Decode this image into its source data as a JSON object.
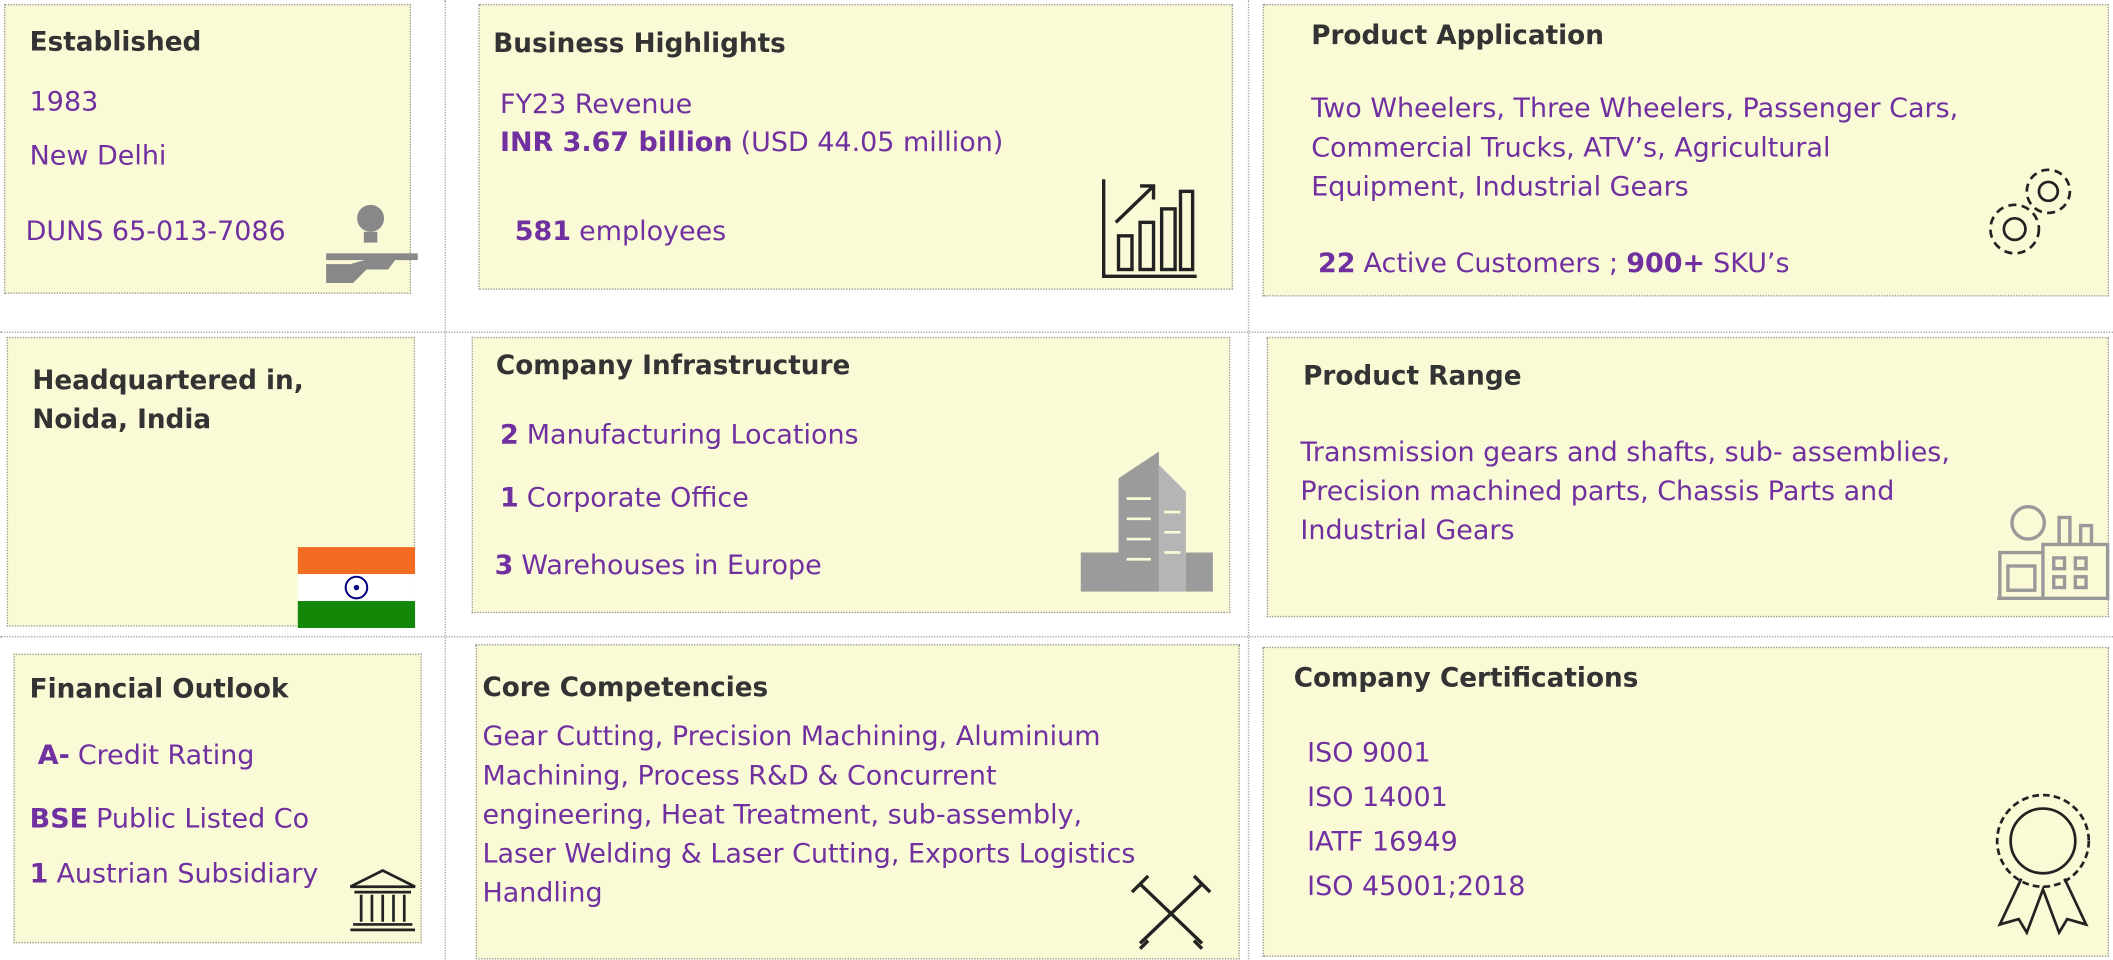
{
  "cards": [
    {
      "title": [
        "Established"
      ],
      "lines": [
        [
          {
            "text": "1983"
          }
        ],
        [
          {
            "text": "New Delhi"
          }
        ],
        [
          {
            "text": "DUNS 65-013-7086"
          }
        ]
      ]
    },
    {
      "title": [
        "Business Highlights"
      ],
      "lines": [
        [
          {
            "text": "FY23 Revenue"
          }
        ],
        [
          {
            "strong": "INR 3.67 billion"
          },
          {
            "text": "(USD 44.05 million)"
          }
        ],
        [
          {
            "strong": "581"
          },
          {
            "text": "employees"
          }
        ]
      ]
    },
    {
      "title": [
        "Product Application"
      ],
      "lines": [
        [
          {
            "text": "Two Wheelers, Three Wheelers, Passenger Cars,"
          }
        ],
        [
          {
            "text": "Commercial Trucks, ATV’s, Agricultural"
          }
        ],
        [
          {
            "text": "Equipment, Industrial Gears"
          }
        ],
        [
          {
            "strong": "22"
          },
          {
            "text": "Active Customers ;"
          },
          {
            "strong": "900+"
          },
          {
            "text": "SKU’s"
          }
        ]
      ]
    },
    {
      "title": [
        "Headquartered in,",
        "Noida, India"
      ],
      "lines": []
    },
    {
      "title": [
        "Company Infrastructure"
      ],
      "lines": [
        [
          {
            "strong": "2"
          },
          {
            "text": "Manufacturing Locations"
          }
        ],
        [
          {
            "strong": "1"
          },
          {
            "text": "Corporate Office"
          }
        ],
        [
          {
            "strong": "3"
          },
          {
            "text": "Warehouses in Europe"
          }
        ]
      ]
    },
    {
      "title": [
        "Product Range"
      ],
      "lines": [
        [
          {
            "text": "Transmission gears and shafts, sub- assemblies,"
          }
        ],
        [
          {
            "text": "Precision machined parts, Chassis Parts and"
          }
        ],
        [
          {
            "text": "Industrial Gears"
          }
        ]
      ]
    },
    {
      "title": [
        "Financial Outlook"
      ],
      "lines": [
        [
          {
            "strong": "A-"
          },
          {
            "text": "Credit Rating"
          }
        ],
        [
          {
            "strong": "BSE"
          },
          {
            "text": "Public Listed Co"
          }
        ],
        [
          {
            "strong": "1"
          },
          {
            "text": "Austrian Subsidiary"
          }
        ]
      ]
    },
    {
      "title": [
        "Core Competencies"
      ],
      "lines": [
        [
          {
            "text": "Gear Cutting, Precision Machining, Aluminium"
          }
        ],
        [
          {
            "text": "Machining, Process R&D & Concurrent"
          }
        ],
        [
          {
            "text": "engineering, Heat Treatment, sub-assembly,"
          }
        ],
        [
          {
            "text": "Laser Welding & Laser Cutting, Exports Logistics"
          }
        ],
        [
          {
            "text": "Handling"
          }
        ]
      ]
    },
    {
      "title": [
        "Company Certifications"
      ],
      "lines": [
        [
          {
            "text": "ISO 9001"
          }
        ],
        [
          {
            "text": "ISO 14001"
          }
        ],
        [
          {
            "text": "IATF 16949"
          }
        ],
        [
          {
            "text": "ISO 45001;2018"
          }
        ]
      ]
    }
  ]
}
